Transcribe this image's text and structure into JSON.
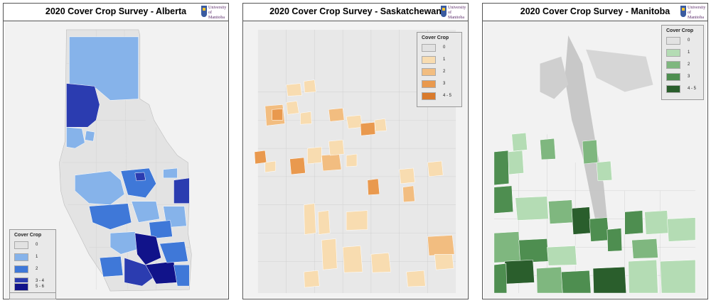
{
  "logo_text": [
    "University",
    "of Manitoba"
  ],
  "panels": [
    {
      "title": "2020 Cover Crop Survey - Alberta",
      "legend": {
        "title": "Cover Crop",
        "items": [
          {
            "label": "0",
            "color": "#e2e2e2"
          },
          {
            "label": "1",
            "color": "#86b3ea"
          },
          {
            "label": "2",
            "color": "#3f78d8"
          },
          {
            "label": "3 - 4",
            "color": "#2b3cb0"
          },
          {
            "label": "5 - 6",
            "color": "#11138a"
          }
        ]
      }
    },
    {
      "title": "2020 Cover Crop Survey - Saskatchewan",
      "legend": {
        "title": "Cover Crop",
        "items": [
          {
            "label": "0",
            "color": "#e2e2e2"
          },
          {
            "label": "1",
            "color": "#f8dcb0"
          },
          {
            "label": "2",
            "color": "#f2bd80"
          },
          {
            "label": "3",
            "color": "#e9994e"
          },
          {
            "label": "4 - 5",
            "color": "#d97a2c"
          }
        ]
      }
    },
    {
      "title": "2020 Cover Crop Survey - Manitoba",
      "legend": {
        "title": "Cover Crop",
        "items": [
          {
            "label": "0",
            "color": "#e2e2e2"
          },
          {
            "label": "1",
            "color": "#b4dcb4"
          },
          {
            "label": "2",
            "color": "#7fb77f"
          },
          {
            "label": "3",
            "color": "#4e8e50"
          },
          {
            "label": "4 - 5",
            "color": "#2a5e2c"
          }
        ]
      }
    }
  ]
}
